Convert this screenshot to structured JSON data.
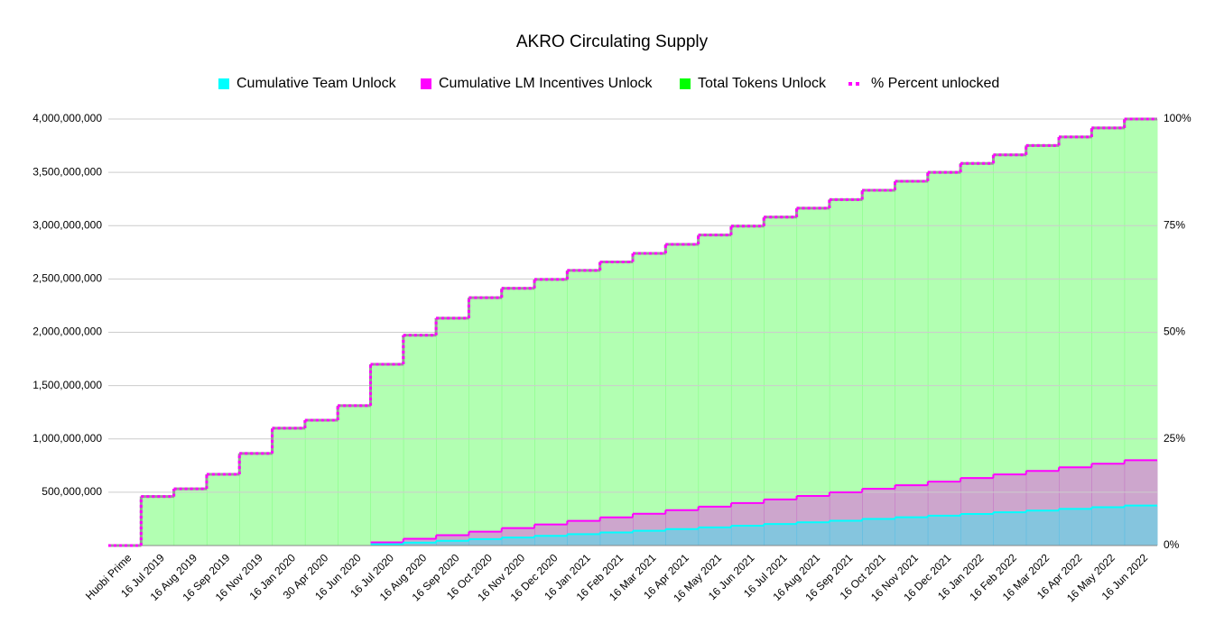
{
  "chart_data": {
    "type": "step-area",
    "title": "AKRO Circulating Supply",
    "categories": [
      "Huobi Prime",
      "16 Jul 2019",
      "16 Aug 2019",
      "16 Sep 2019",
      "16 Nov 2019",
      "16 Jan 2020",
      "30 Apr 2020",
      "16 Jun 2020",
      "16 Jul 2020",
      "16 Aug 2020",
      "16 Sep 2020",
      "16 Oct 2020",
      "16 Nov 2020",
      "16 Dec 2020",
      "16 Jan 2021",
      "16 Feb 2021",
      "16 Mar 2021",
      "16 Apr 2021",
      "16 May 2021",
      "16 Jun 2021",
      "16 Jul 2021",
      "16 Aug 2021",
      "16 Sep 2021",
      "16 Oct 2021",
      "16 Nov 2021",
      "16 Dec 2021",
      "16 Jan 2022",
      "16 Feb 2022",
      "16 Mar 2022",
      "16 Apr 2022",
      "16 May 2022",
      "16 Jun 2022"
    ],
    "series": [
      {
        "name": "Cumulative Team Unlock",
        "color": "#00ffff",
        "values": [
          null,
          null,
          null,
          null,
          null,
          null,
          null,
          null,
          12500000,
          28000000,
          44000000,
          60000000,
          75500000,
          91000000,
          107000000,
          123000000,
          139000000,
          154500000,
          170000000,
          186000000,
          202000000,
          217500000,
          233000000,
          249000000,
          265000000,
          280500000,
          296000000,
          312000000,
          328000000,
          344000000,
          359500000,
          375000000
        ]
      },
      {
        "name": "Cumulative LM Incentives Unlock",
        "color": "#ff00ff",
        "values": [
          null,
          null,
          null,
          null,
          null,
          null,
          null,
          null,
          30000000,
          63500000,
          97000000,
          130500000,
          164000000,
          197500000,
          231000000,
          264500000,
          298000000,
          331500000,
          365000000,
          398500000,
          432000000,
          465500000,
          499000000,
          532500000,
          566000000,
          599500000,
          633000000,
          666500000,
          700000000,
          733500000,
          767000000,
          800000000
        ]
      },
      {
        "name": "Total Tokens Unlock",
        "color": "#00ff00",
        "values": [
          0,
          460000000,
          533000000,
          668000000,
          863000000,
          1100000000,
          1175000000,
          1310000000,
          1700000000,
          1970000000,
          2130000000,
          2325000000,
          2410000000,
          2495000000,
          2580000000,
          2660000000,
          2740000000,
          2825000000,
          2910000000,
          2995000000,
          3080000000,
          3165000000,
          3245000000,
          3330000000,
          3415000000,
          3500000000,
          3585000000,
          3665000000,
          3750000000,
          3830000000,
          3915000000,
          4000000000
        ]
      },
      {
        "name": "% Percent unlocked",
        "color": "#ff00ff",
        "axis": "y2",
        "values": [
          0,
          11.5,
          13.3,
          16.7,
          21.6,
          27.5,
          29.4,
          32.8,
          42.5,
          49.3,
          53.3,
          58.1,
          60.3,
          62.4,
          64.5,
          66.5,
          68.5,
          70.6,
          72.8,
          74.9,
          77,
          79.1,
          81.1,
          83.3,
          85.4,
          87.5,
          89.6,
          91.6,
          93.8,
          95.8,
          97.9,
          100
        ]
      }
    ],
    "ylim": [
      0,
      4000000000
    ],
    "yticks": [
      {
        "value": 500000000,
        "label": "500,000,000"
      },
      {
        "value": 1000000000,
        "label": "1,000,000,000"
      },
      {
        "value": 1500000000,
        "label": "1,500,000,000"
      },
      {
        "value": 2000000000,
        "label": "2,000,000,000"
      },
      {
        "value": 2500000000,
        "label": "2,500,000,000"
      },
      {
        "value": 3000000000,
        "label": "3,000,000,000"
      },
      {
        "value": 3500000000,
        "label": "3,500,000,000"
      },
      {
        "value": 4000000000,
        "label": "4,000,000,000"
      }
    ],
    "y2lim": [
      0,
      100
    ],
    "y2ticks": [
      {
        "value": 0,
        "label": "0%"
      },
      {
        "value": 25,
        "label": "25%"
      },
      {
        "value": 50,
        "label": "50%"
      },
      {
        "value": 75,
        "label": "75%"
      },
      {
        "value": 100,
        "label": "100%"
      }
    ],
    "grid": true,
    "legend": "top"
  }
}
